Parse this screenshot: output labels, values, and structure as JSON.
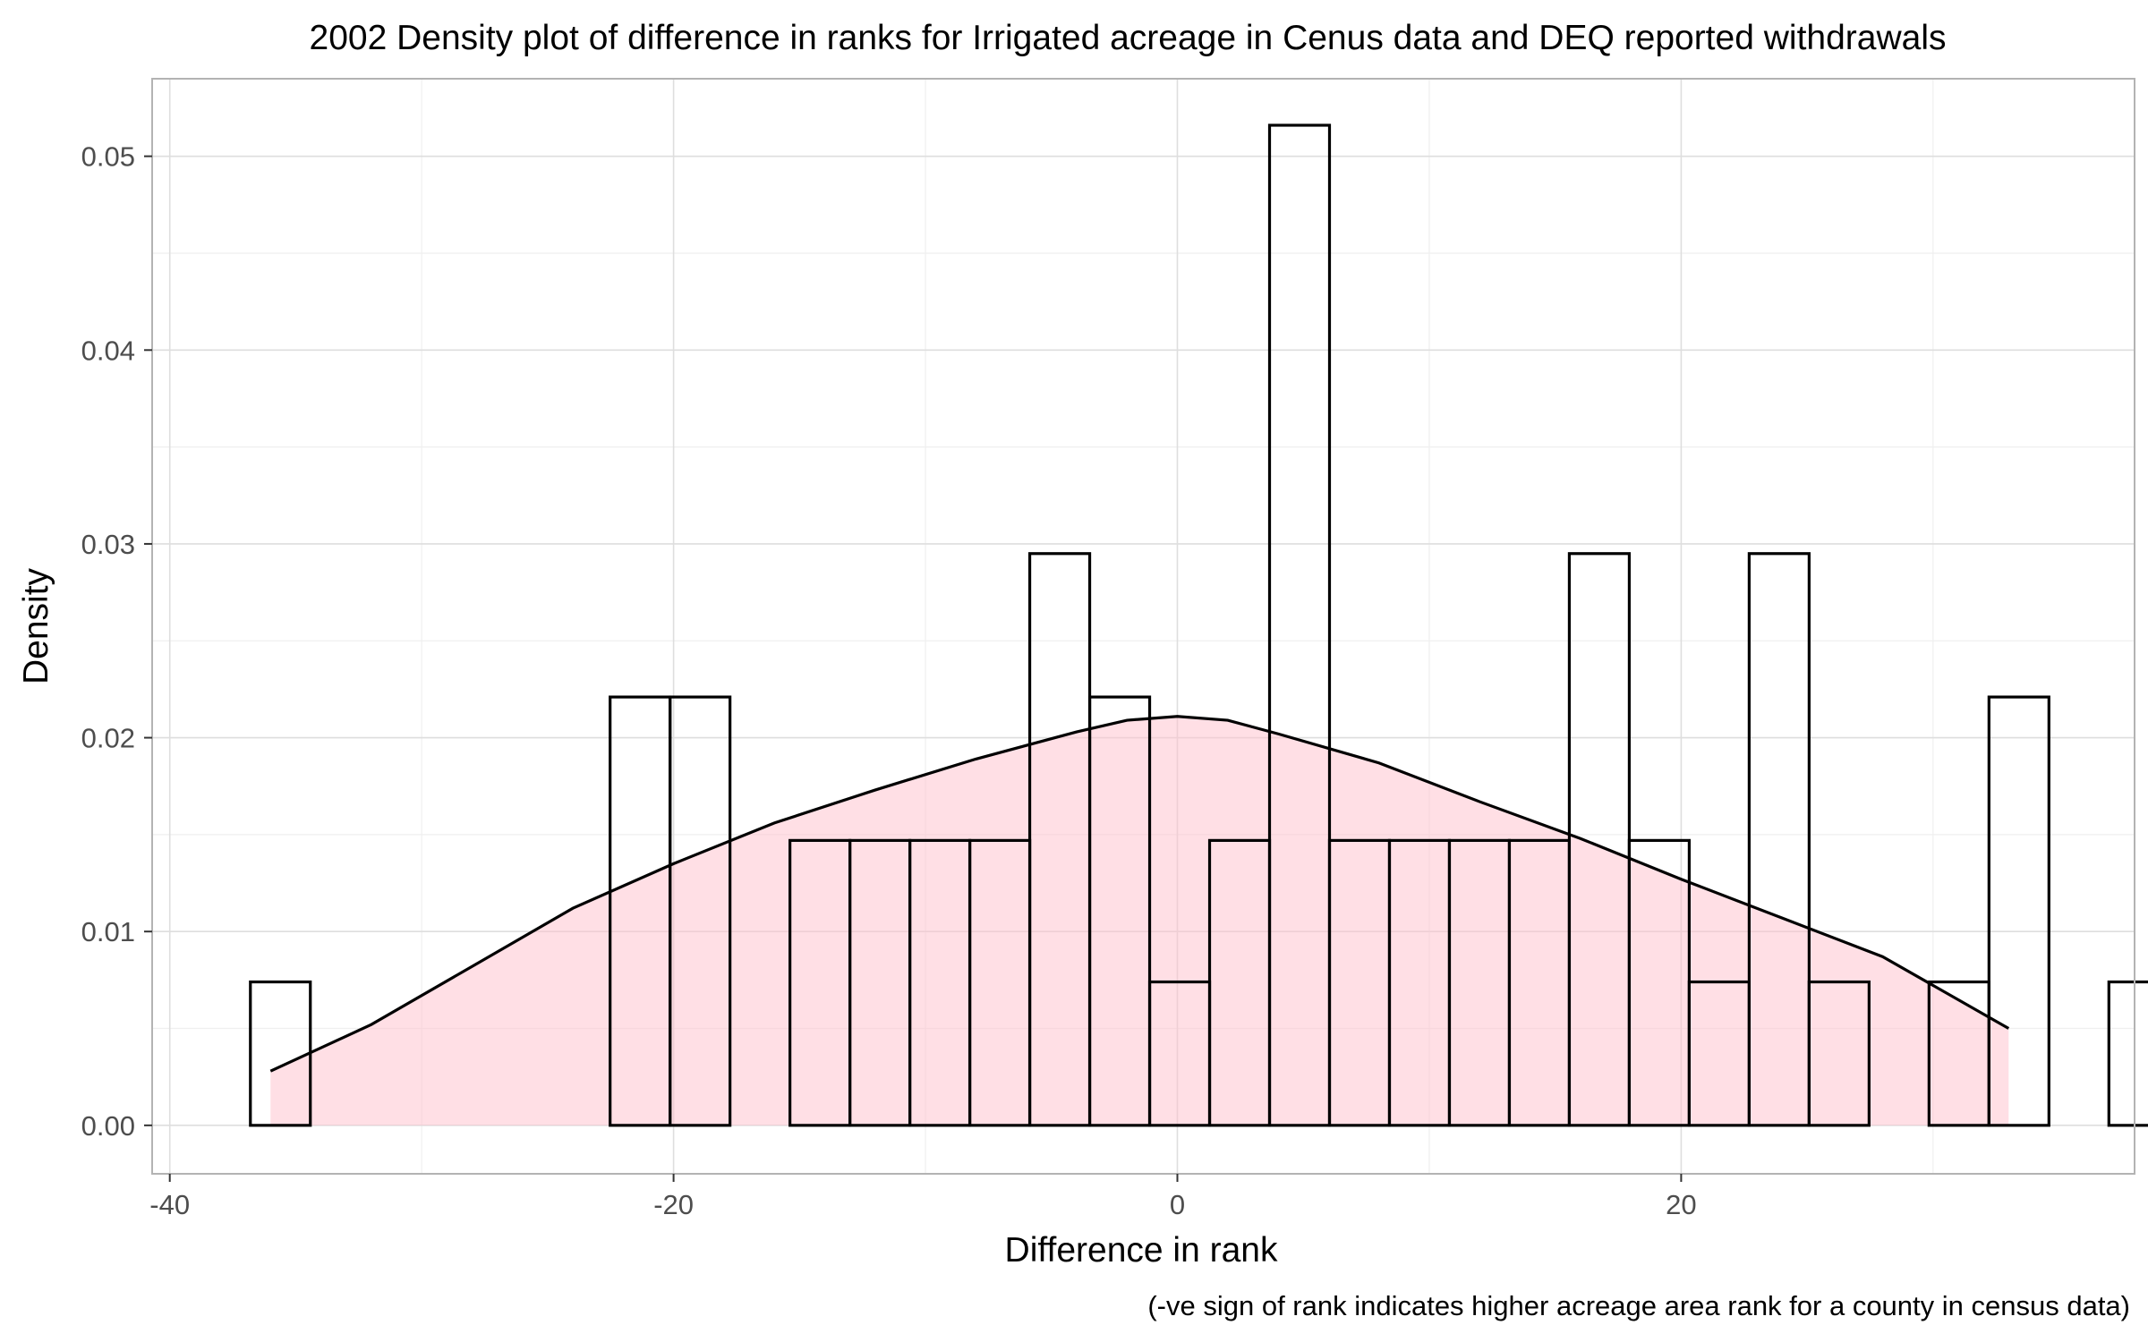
{
  "chart_data": {
    "type": "bar",
    "title": "2002 Density plot of difference in ranks for Irrigated acreage in Cenus data and DEQ reported withdrawals",
    "xlabel": "Difference in rank",
    "ylabel": "Density",
    "caption": "(-ve sign of rank indicates higher acreage area rank for a county in census data)",
    "xlim": [
      -40.7,
      38.0
    ],
    "ylim": [
      -0.0025,
      0.054
    ],
    "x_ticks": [
      -40,
      -20,
      0,
      20
    ],
    "x_tick_labels": [
      "-40",
      "-20",
      "0",
      "20"
    ],
    "y_ticks": [
      0.0,
      0.01,
      0.02,
      0.03,
      0.04,
      0.05
    ],
    "y_tick_labels": [
      "0.00",
      "0.01",
      "0.02",
      "0.03",
      "0.04",
      "0.05"
    ],
    "grid": true,
    "theme": "light",
    "bin_width": 2.38,
    "bin_start": -36.8,
    "histogram_densities": [
      0.0074,
      0,
      0,
      0,
      0,
      0,
      0.0221,
      0.0221,
      0,
      0.0147,
      0.0147,
      0.0147,
      0.0147,
      0.0295,
      0.0221,
      0.0074,
      0.0147,
      0.0516,
      0.0147,
      0.0147,
      0.0147,
      0.0147,
      0.0295,
      0.0147,
      0.0074,
      0.0295,
      0.0074,
      0,
      0.0074,
      0.0221,
      0,
      0.0074
    ],
    "density_curve": {
      "x": [
        -36,
        -32,
        -28,
        -24,
        -20,
        -16,
        -12,
        -8,
        -4,
        -2,
        0,
        2,
        4,
        8,
        12,
        16,
        20,
        24,
        28,
        33
      ],
      "y": [
        0.0028,
        0.0052,
        0.0082,
        0.0112,
        0.0135,
        0.0156,
        0.0173,
        0.0189,
        0.0203,
        0.0209,
        0.0211,
        0.0209,
        0.0202,
        0.0187,
        0.0167,
        0.0148,
        0.0127,
        0.0107,
        0.0087,
        0.005
      ]
    },
    "colors": {
      "bar_fill": "#ffffff",
      "bar_stroke": "#000000",
      "density_fill": "#ffc0cb",
      "density_fill_opacity": 0.5,
      "density_stroke": "#000000",
      "panel_border": "#b3b3b3",
      "grid_major": "#dedede",
      "grid_minor": "#efefef"
    }
  }
}
